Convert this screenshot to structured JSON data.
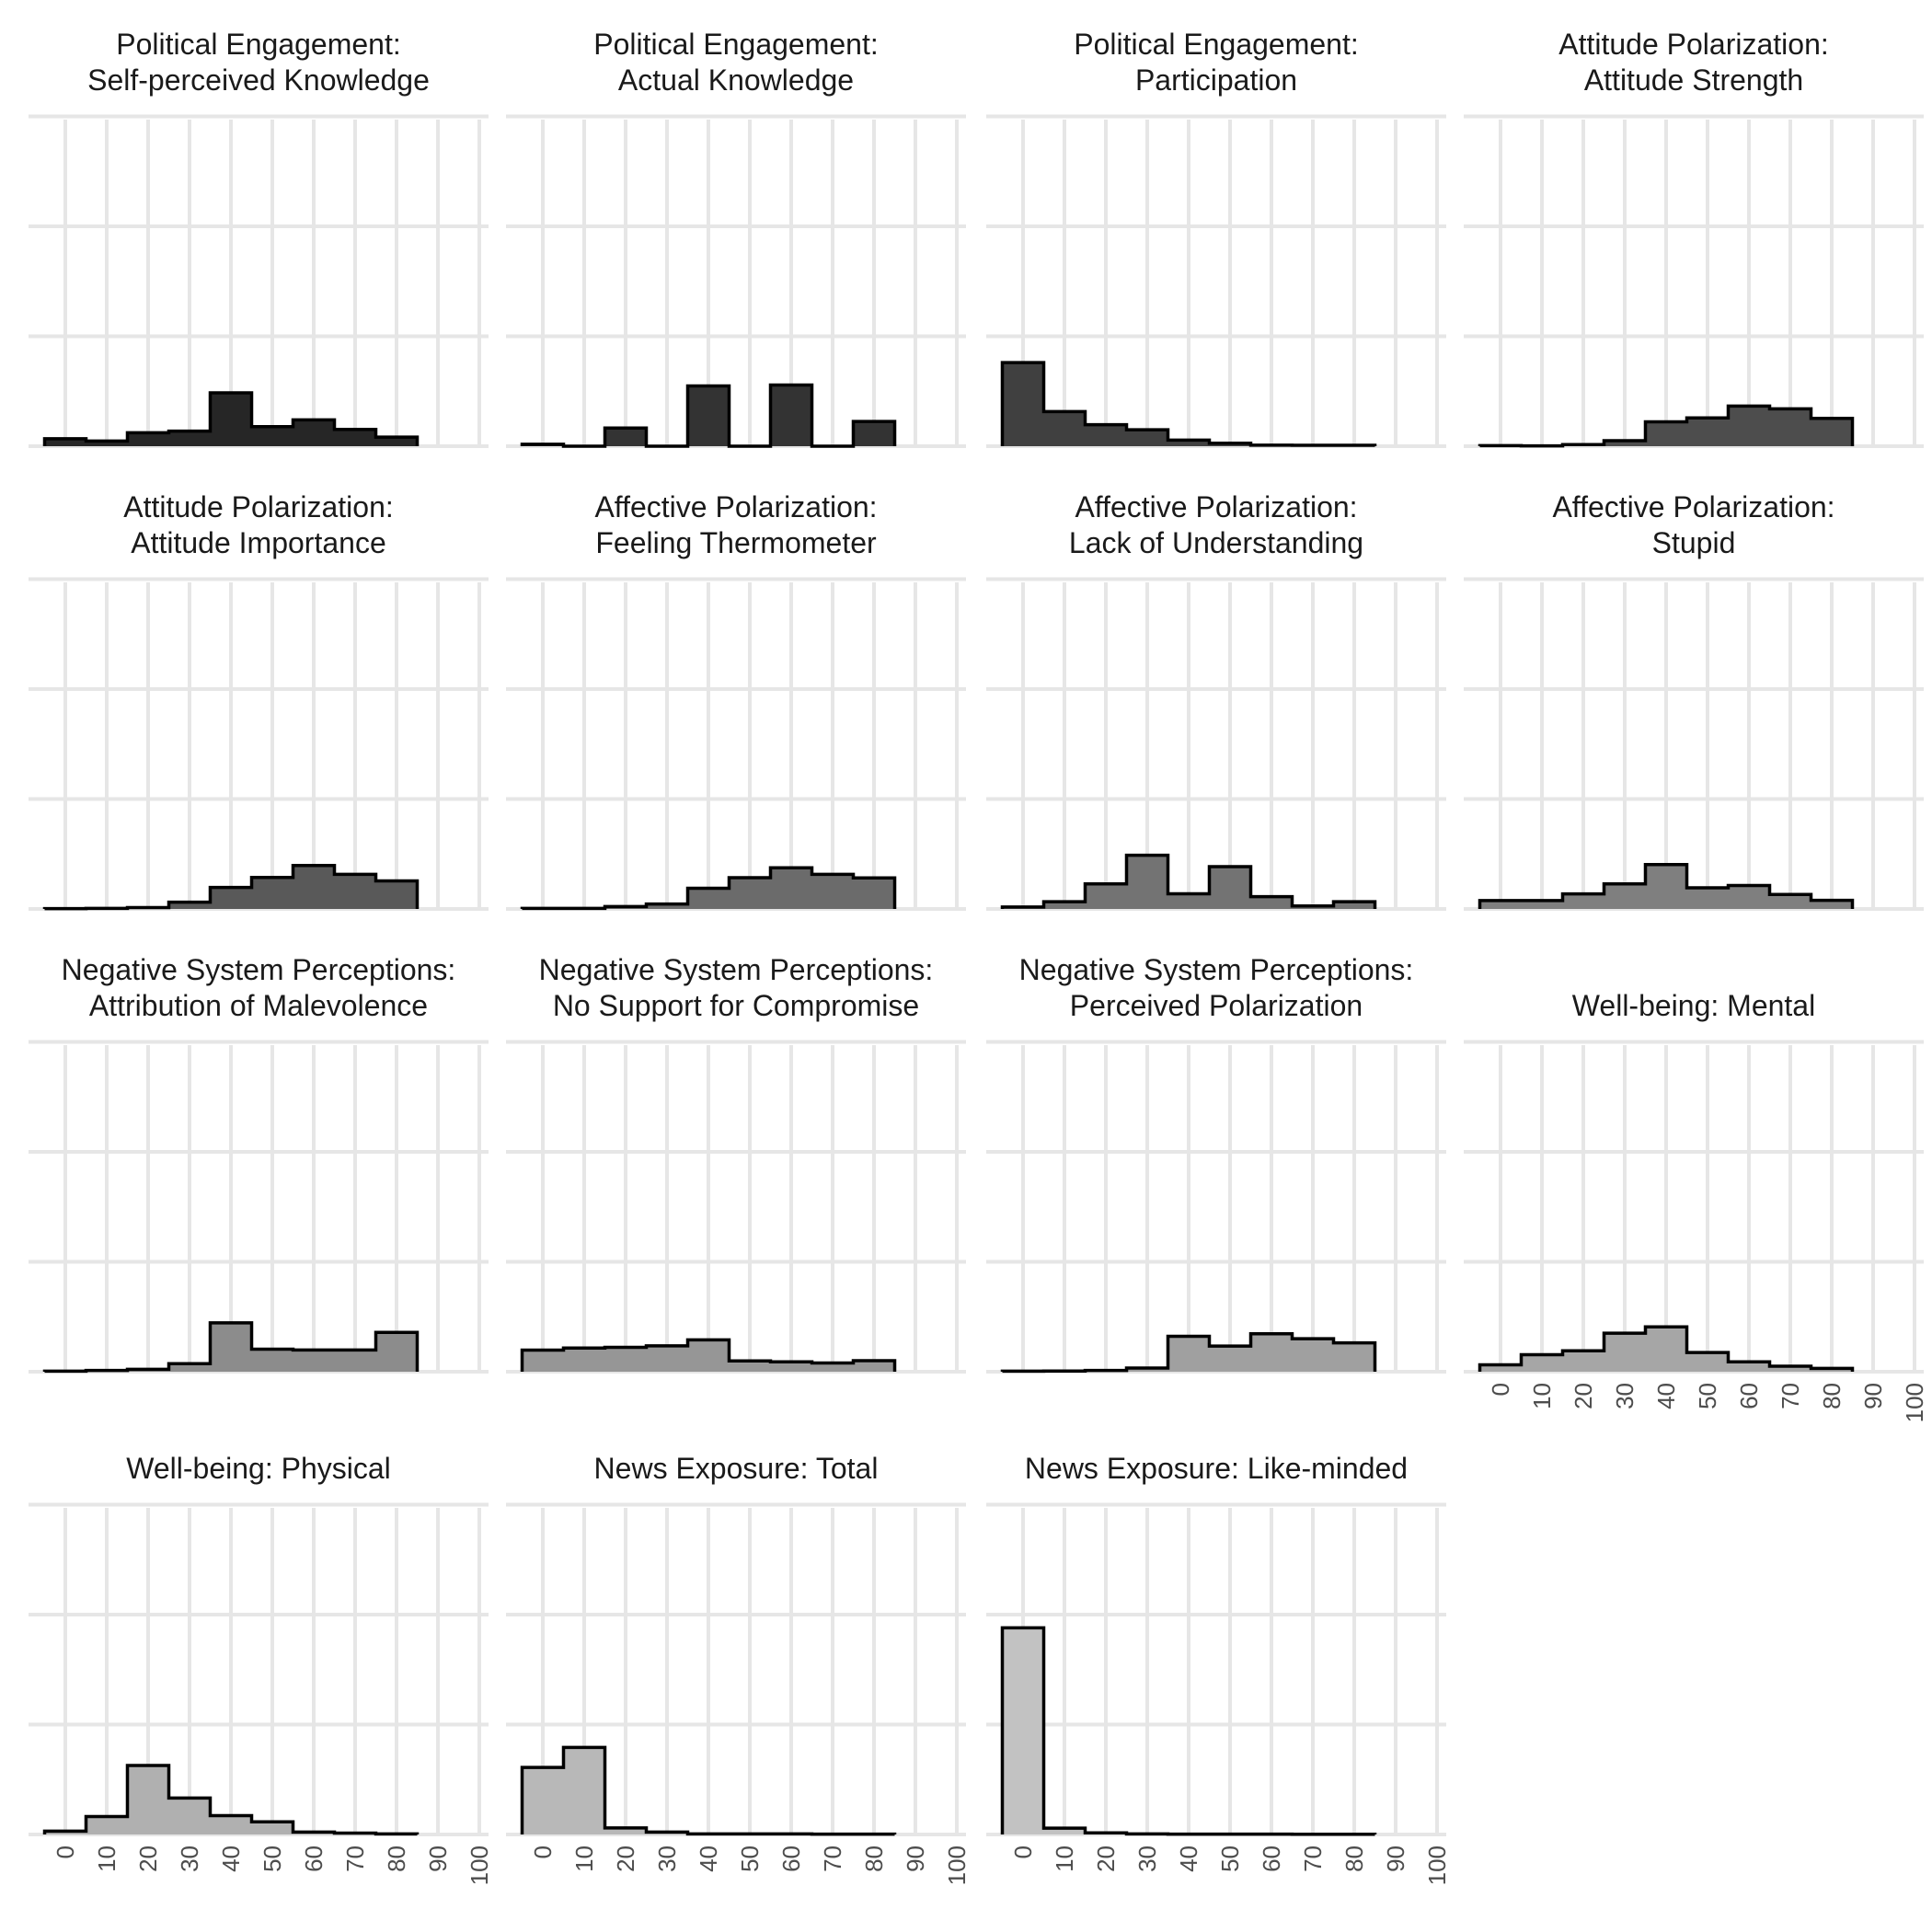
{
  "chart_data": [
    {
      "type": "bar",
      "title": [
        "Political Engagement:",
        "Self-perceived Knowledge"
      ],
      "fill": "#262626",
      "categories": [
        "0",
        "10",
        "20",
        "30",
        "40",
        "50",
        "60",
        "70",
        "80",
        "90",
        "100"
      ],
      "values": [
        0.068,
        0.047,
        0.122,
        0.137,
        0.485,
        0.178,
        0.24,
        0.153,
        0.083,
        0,
        0
      ]
    },
    {
      "type": "bar",
      "title": [
        "Political Engagement:",
        "Actual Knowledge"
      ],
      "fill": "#333333",
      "categories": [
        "0",
        "10",
        "20",
        "30",
        "40",
        "50",
        "60",
        "70",
        "80",
        "90",
        "100"
      ],
      "values": [
        0.018,
        0,
        0.165,
        0,
        0.548,
        0,
        0.557,
        0,
        0.225,
        0,
        0
      ]
    },
    {
      "type": "bar",
      "title": [
        "Political Engagement:",
        "Participation"
      ],
      "fill": "#404040",
      "categories": [
        "0",
        "10",
        "20",
        "30",
        "40",
        "50",
        "60",
        "70",
        "80",
        "90",
        "100"
      ],
      "values": [
        0.76,
        0.315,
        0.196,
        0.15,
        0.055,
        0.027,
        0.009,
        0.008,
        0.008,
        0,
        0
      ]
    },
    {
      "type": "bar",
      "title": [
        "Attitude Polarization:",
        "Attitude Strength"
      ],
      "fill": "#4d4d4d",
      "categories": [
        "0",
        "10",
        "20",
        "30",
        "40",
        "50",
        "60",
        "70",
        "80",
        "90",
        "100"
      ],
      "values": [
        0.005,
        0.003,
        0.015,
        0.05,
        0.222,
        0.257,
        0.365,
        0.34,
        0.253,
        0,
        0
      ]
    },
    {
      "type": "bar",
      "title": [
        "Attitude Polarization:",
        "Attitude Importance"
      ],
      "fill": "#595959",
      "categories": [
        "0",
        "10",
        "20",
        "30",
        "40",
        "50",
        "60",
        "70",
        "80",
        "90",
        "100"
      ],
      "values": [
        0.003,
        0.005,
        0.013,
        0.062,
        0.196,
        0.287,
        0.395,
        0.315,
        0.255,
        0,
        0
      ]
    },
    {
      "type": "bar",
      "title": [
        "Affective Polarization:",
        "Feeling Thermometer"
      ],
      "fill": "#6b6b6b",
      "categories": [
        "0",
        "10",
        "20",
        "30",
        "40",
        "50",
        "60",
        "70",
        "80",
        "90",
        "100"
      ],
      "values": [
        0.005,
        0.005,
        0.022,
        0.045,
        0.188,
        0.285,
        0.375,
        0.315,
        0.282,
        0,
        0
      ]
    },
    {
      "type": "bar",
      "title": [
        "Affective Polarization:",
        "Lack of Understanding"
      ],
      "fill": "#737373",
      "categories": [
        "0",
        "10",
        "20",
        "30",
        "40",
        "50",
        "60",
        "70",
        "80",
        "90",
        "100"
      ],
      "values": [
        0.018,
        0.066,
        0.228,
        0.488,
        0.138,
        0.385,
        0.112,
        0.027,
        0.066,
        0,
        0
      ]
    },
    {
      "type": "bar",
      "title": [
        "Affective Polarization:",
        "Stupid"
      ],
      "fill": "#7f7f7f",
      "categories": [
        "0",
        "10",
        "20",
        "30",
        "40",
        "50",
        "60",
        "70",
        "80",
        "90",
        "100"
      ],
      "values": [
        0.076,
        0.076,
        0.137,
        0.228,
        0.404,
        0.192,
        0.213,
        0.132,
        0.078,
        0,
        0
      ]
    },
    {
      "type": "bar",
      "title": [
        "Negative System Perceptions:",
        "Attribution of Malevolence"
      ],
      "fill": "#8c8c8c",
      "categories": [
        "0",
        "10",
        "20",
        "30",
        "40",
        "50",
        "60",
        "70",
        "80",
        "90",
        "100"
      ],
      "values": [
        0.005,
        0.011,
        0.022,
        0.073,
        0.445,
        0.205,
        0.198,
        0.198,
        0.358,
        0,
        0
      ]
    },
    {
      "type": "bar",
      "title": [
        "Negative System Perceptions:",
        "No Support for Compromise"
      ],
      "fill": "#969696",
      "categories": [
        "0",
        "10",
        "20",
        "30",
        "40",
        "50",
        "60",
        "70",
        "80",
        "90",
        "100"
      ],
      "values": [
        0.197,
        0.215,
        0.222,
        0.235,
        0.29,
        0.098,
        0.09,
        0.08,
        0.1,
        0,
        0
      ]
    },
    {
      "type": "bar",
      "title": [
        "Negative System Perceptions:",
        "Perceived Polarization"
      ],
      "fill": "#a0a0a0",
      "categories": [
        "0",
        "10",
        "20",
        "30",
        "40",
        "50",
        "60",
        "70",
        "80",
        "90",
        "100"
      ],
      "values": [
        0.005,
        0.006,
        0.011,
        0.033,
        0.322,
        0.233,
        0.345,
        0.3,
        0.263,
        0,
        0
      ]
    },
    {
      "type": "bar",
      "title": [
        "Well-being: Mental"
      ],
      "fill": "#a6a6a6",
      "categories": [
        "0",
        "10",
        "20",
        "30",
        "40",
        "50",
        "60",
        "70",
        "80",
        "90",
        "100"
      ],
      "values": [
        0.063,
        0.155,
        0.19,
        0.35,
        0.408,
        0.175,
        0.09,
        0.05,
        0.03,
        0,
        0
      ]
    },
    {
      "type": "bar",
      "title": [
        "Well-being: Physical"
      ],
      "fill": "#b0b0b0",
      "categories": [
        "0",
        "10",
        "20",
        "30",
        "40",
        "50",
        "60",
        "70",
        "80",
        "90",
        "100"
      ],
      "values": [
        0.03,
        0.163,
        0.628,
        0.332,
        0.172,
        0.115,
        0.022,
        0.013,
        0.005,
        0,
        0
      ]
    },
    {
      "type": "bar",
      "title": [
        "News Exposure: Total"
      ],
      "fill": "#b8b8b8",
      "categories": [
        "0",
        "10",
        "20",
        "30",
        "40",
        "50",
        "60",
        "70",
        "80",
        "90",
        "100"
      ],
      "values": [
        0.61,
        0.792,
        0.06,
        0.022,
        0.005,
        0.005,
        0.005,
        0.003,
        0.003,
        0.005,
        0
      ]
    },
    {
      "type": "bar",
      "title": [
        "News Exposure: Like-minded"
      ],
      "fill": "#c2c2c2",
      "categories": [
        "0",
        "10",
        "20",
        "30",
        "40",
        "50",
        "60",
        "70",
        "80",
        "90",
        "100"
      ],
      "values": [
        1.88,
        0.058,
        0.015,
        0.005,
        0.003,
        0.003,
        0.003,
        0.002,
        0.002,
        0.002,
        0
      ]
    }
  ]
}
